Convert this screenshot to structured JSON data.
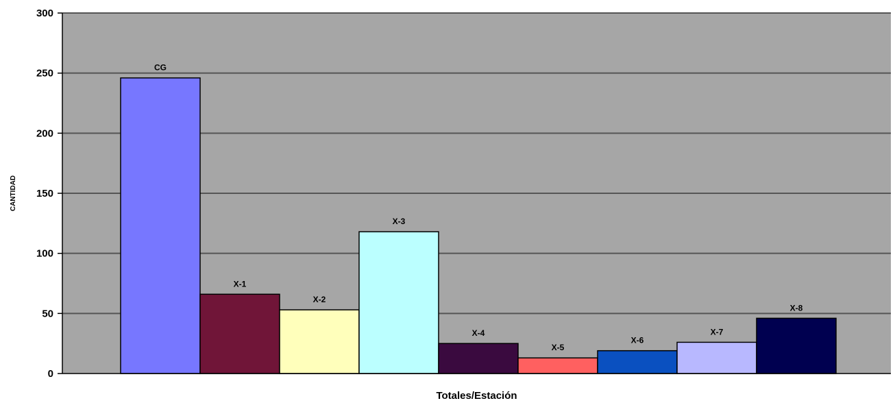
{
  "chart_data": {
    "type": "bar",
    "categories": [
      "CG",
      "X-1",
      "X-2",
      "X-3",
      "X-4",
      "X-5",
      "X-6",
      "X-7",
      "X-8"
    ],
    "values": [
      246,
      66,
      53,
      118,
      25,
      13,
      19,
      26,
      46
    ],
    "colors": [
      "#7777ff",
      "#701538",
      "#ffffbb",
      "#bbffff",
      "#3a0a3f",
      "#ff6060",
      "#0a50c0",
      "#b8b8ff",
      "#000050"
    ],
    "title": "",
    "xlabel": "Totales/Estación",
    "ylabel": "CANTIDAD",
    "ylim": [
      0,
      300
    ],
    "yticks": [
      "0",
      "50",
      "100",
      "150",
      "200",
      "250",
      "300"
    ],
    "grid": true,
    "plot_background": "#a6a6a6",
    "gridline_color": "#555555",
    "legend": "none"
  }
}
